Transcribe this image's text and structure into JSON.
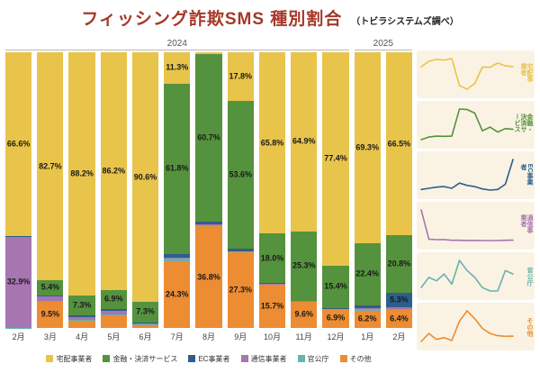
{
  "title": "フィッシング詐欺SMS 種別割合",
  "source_note": "（トビラシステムズ調べ）",
  "year_groups": [
    {
      "label": "2024",
      "months": 11
    },
    {
      "label": "2025",
      "months": 2
    }
  ],
  "colors": {
    "title": "#A53828",
    "panel_bg": "#FAF3E3",
    "label_text": "#1A1A1A"
  },
  "chart_data": {
    "type": "bar",
    "stacked": true,
    "unit": "%",
    "ylim": [
      0,
      100
    ],
    "legend_position": "bottom",
    "categories": [
      "2月",
      "3月",
      "4月",
      "5月",
      "6月",
      "7月",
      "8月",
      "9月",
      "10月",
      "11月",
      "12月",
      "1月",
      "2月"
    ],
    "series": [
      {
        "name": "宅配事業者",
        "color": "#E8C44B",
        "values": [
          66.6,
          82.7,
          88.2,
          86.2,
          90.6,
          11.3,
          0.8,
          17.8,
          65.8,
          64.9,
          77.4,
          69.3,
          66.5
        ],
        "labels": [
          "66.6%",
          "82.7%",
          "88.2%",
          "86.2%",
          "90.6%",
          "11.3%",
          null,
          "17.8%",
          "65.8%",
          "64.9%",
          "77.4%",
          "69.3%",
          "66.5%"
        ]
      },
      {
        "name": "金融・決済サービス",
        "color": "#55923D",
        "values": [
          0.2,
          5.4,
          7.3,
          6.9,
          7.3,
          61.8,
          60.7,
          53.6,
          18.0,
          25.3,
          15.4,
          22.4,
          20.8
        ],
        "labels": [
          null,
          "5.4%",
          "7.3%",
          "6.9%",
          "7.3%",
          "61.8%",
          "60.7%",
          "53.6%",
          "18.0%",
          "25.3%",
          "15.4%",
          "22.4%",
          "20.8%"
        ]
      },
      {
        "name": "EC事業者",
        "color": "#2E5E8C",
        "values": [
          0.2,
          0.4,
          0.6,
          0.7,
          0.4,
          1.3,
          0.9,
          0.7,
          0.3,
          0.1,
          0.2,
          1.1,
          5.3
        ],
        "labels": [
          null,
          null,
          null,
          null,
          null,
          null,
          null,
          null,
          null,
          null,
          null,
          null,
          "5.3%"
        ]
      },
      {
        "name": "通信事業者",
        "color": "#A576B0",
        "values": [
          32.9,
          1.6,
          1.1,
          1.2,
          0.4,
          0.4,
          0.2,
          0.2,
          0.1,
          0.1,
          0.1,
          0.4,
          0.5
        ],
        "labels": [
          "32.9%",
          null,
          null,
          null,
          null,
          null,
          null,
          null,
          null,
          null,
          null,
          null,
          null
        ]
      },
      {
        "name": "官公庁",
        "color": "#66B2AE",
        "values": [
          0.1,
          0.4,
          0.3,
          0.5,
          0.2,
          0.9,
          0.6,
          0.4,
          0.1,
          0.0,
          0.0,
          0.6,
          0.5
        ],
        "labels": [
          null,
          null,
          null,
          null,
          null,
          null,
          null,
          null,
          null,
          null,
          null,
          null,
          null
        ]
      },
      {
        "name": "その他",
        "color": "#EC8C33",
        "values": [
          0.0,
          9.5,
          2.5,
          4.5,
          1.1,
          24.3,
          36.8,
          27.3,
          15.7,
          9.6,
          6.9,
          6.2,
          6.4
        ],
        "labels": [
          null,
          "9.5%",
          null,
          null,
          null,
          "24.3%",
          "36.8%",
          "27.3%",
          "15.7%",
          "9.6%",
          "6.9%",
          "6.2%",
          "6.4%"
        ]
      }
    ]
  }
}
